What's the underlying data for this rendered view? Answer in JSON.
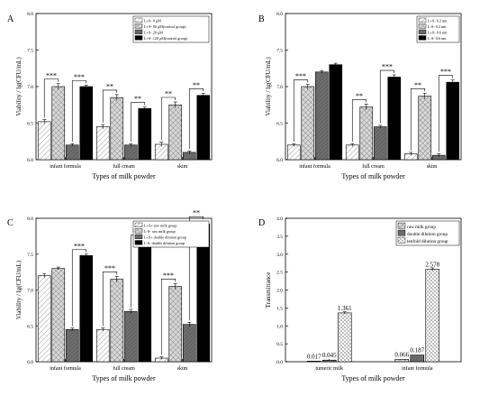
{
  "chart_data": [
    {
      "panel_label": "A",
      "type": "bar",
      "categories": [
        "infant formula",
        "full cream",
        "skim"
      ],
      "xlabel": "Types of milk powder",
      "ylabel": "Viability / lg(CFU/mL)",
      "ylim": [
        6.0,
        8.0
      ],
      "yticks": [
        "6.0",
        "6.5",
        "7.0",
        "7.5",
        "8.0"
      ],
      "legend_position": "top-right",
      "series": [
        {
          "name": "L+S- 0 μM",
          "values": [
            6.52,
            6.45,
            6.21
          ],
          "errors": [
            0.03,
            0.03,
            0.03
          ],
          "pattern": "diag-light"
        },
        {
          "name": "L+S- 90 μM(control group)",
          "values": [
            7.0,
            6.85,
            6.75
          ],
          "errors": [
            0.04,
            0.04,
            0.04
          ],
          "pattern": "cross-light"
        },
        {
          "name": "L+S- 20 μM",
          "values": [
            6.2,
            6.2,
            6.1
          ],
          "errors": [
            0.02,
            0.02,
            0.02
          ],
          "pattern": "dark"
        },
        {
          "name": "L+S- 120 μM(control group)",
          "values": [
            7.0,
            6.7,
            6.88
          ],
          "errors": [
            0.02,
            0.02,
            0.03
          ],
          "pattern": "black"
        }
      ],
      "significance": [
        {
          "category": 0,
          "pair": [
            0,
            1
          ],
          "text": "***"
        },
        {
          "category": 0,
          "pair": [
            2,
            3
          ],
          "text": "***"
        },
        {
          "category": 1,
          "pair": [
            0,
            1
          ],
          "text": "**"
        },
        {
          "category": 1,
          "pair": [
            2,
            3
          ],
          "text": "**"
        },
        {
          "category": 2,
          "pair": [
            0,
            1
          ],
          "text": "**"
        },
        {
          "category": 2,
          "pair": [
            2,
            3
          ],
          "text": "**"
        }
      ]
    },
    {
      "panel_label": "B",
      "type": "bar",
      "categories": [
        "infant formula",
        "full cream",
        "skim"
      ],
      "xlabel": "Types of milk powder",
      "ylabel": "Viability / lg(CFU/mL)",
      "ylim": [
        6.0,
        8.0
      ],
      "yticks": [
        "6.0",
        "6.5",
        "7.0",
        "7.5",
        "8.0"
      ],
      "legend_position": "top-right",
      "series": [
        {
          "name": "L+S- 0.2 nm",
          "values": [
            6.2,
            6.2,
            6.08
          ],
          "errors": [
            0.02,
            0.02,
            0.02
          ],
          "pattern": "diag-light"
        },
        {
          "name": "L-S- 0.2 nm",
          "values": [
            7.0,
            6.72,
            6.87
          ],
          "errors": [
            0.03,
            0.04,
            0.04
          ],
          "pattern": "cross-light"
        },
        {
          "name": "L+S- 0.6 nm",
          "values": [
            7.2,
            6.45,
            6.06
          ],
          "errors": [
            0.02,
            0.02,
            0.02
          ],
          "pattern": "dark"
        },
        {
          "name": "L-S- 0.6 nm",
          "values": [
            7.3,
            7.13,
            7.06
          ],
          "errors": [
            0.02,
            0.03,
            0.03
          ],
          "pattern": "black"
        }
      ],
      "significance": [
        {
          "category": 0,
          "pair": [
            0,
            1
          ],
          "text": "***"
        },
        {
          "category": 1,
          "pair": [
            0,
            1
          ],
          "text": "**"
        },
        {
          "category": 1,
          "pair": [
            2,
            3
          ],
          "text": "***"
        },
        {
          "category": 2,
          "pair": [
            0,
            1
          ],
          "text": "**"
        },
        {
          "category": 2,
          "pair": [
            2,
            3
          ],
          "text": "***"
        }
      ]
    },
    {
      "panel_label": "C",
      "type": "bar",
      "categories": [
        "infant formula",
        "full cream",
        "skim"
      ],
      "xlabel": "Types of milk powder",
      "ylabel": "Viability / lg(CFU/mL)",
      "ylim": [
        6.0,
        8.0
      ],
      "yticks": [
        "6.0",
        "6.5",
        "7.0",
        "7.5",
        "8.0"
      ],
      "legend_position": "top-right",
      "series": [
        {
          "name": "L+S+ raw milk group",
          "values": [
            7.2,
            6.45,
            6.05
          ],
          "errors": [
            0.03,
            0.02,
            0.02
          ],
          "pattern": "diag-light"
        },
        {
          "name": "L-S- raw milk group",
          "values": [
            7.3,
            7.15,
            7.05
          ],
          "errors": [
            0.02,
            0.04,
            0.04
          ],
          "pattern": "cross-light"
        },
        {
          "name": "L+S+ double dilution group",
          "values": [
            6.45,
            6.7,
            6.52
          ],
          "errors": [
            0.02,
            0.03,
            0.03
          ],
          "pattern": "dark"
        },
        {
          "name": "L-S- double dilution group",
          "values": [
            7.48,
            7.68,
            7.92
          ],
          "errors": [
            0.02,
            0.02,
            0.04
          ],
          "pattern": "black"
        }
      ],
      "significance": [
        {
          "category": 0,
          "pair": [
            2,
            3
          ],
          "text": "***"
        },
        {
          "category": 1,
          "pair": [
            0,
            1
          ],
          "text": "***"
        },
        {
          "category": 1,
          "pair": [
            2,
            3
          ],
          "text": "***"
        },
        {
          "category": 2,
          "pair": [
            0,
            1
          ],
          "text": "***"
        },
        {
          "category": 2,
          "pair": [
            2,
            3
          ],
          "text": "**"
        }
      ]
    },
    {
      "panel_label": "D",
      "type": "bar",
      "categories": [
        "tumeric milk",
        "infant formula"
      ],
      "xlabel": "Types of milk powder",
      "ylabel": "Transmittance",
      "ylim": [
        0.0,
        4.0
      ],
      "yticks": [
        "0.0",
        "0.5",
        "1.0",
        "1.5",
        "2.0",
        "2.5",
        "3.0",
        "3.5",
        "4.0"
      ],
      "legend_position": "top-right",
      "series": [
        {
          "name": "raw milk group",
          "values": [
            0.017,
            0.066
          ],
          "labels": [
            "0.017",
            "0.066"
          ],
          "errors": [
            0.0,
            0.0
          ],
          "pattern": "cross-light"
        },
        {
          "name": "double dilution group",
          "values": [
            0.045,
            0.187
          ],
          "labels": [
            "0.045",
            "0.187"
          ],
          "errors": [
            0.0,
            0.0
          ],
          "pattern": "dark"
        },
        {
          "name": "tenfold dilution group",
          "values": [
            1.361,
            2.578
          ],
          "labels": [
            "1.361",
            "2.578"
          ],
          "errors": [
            0.03,
            0.04
          ],
          "pattern": "check"
        }
      ],
      "significance": []
    }
  ]
}
